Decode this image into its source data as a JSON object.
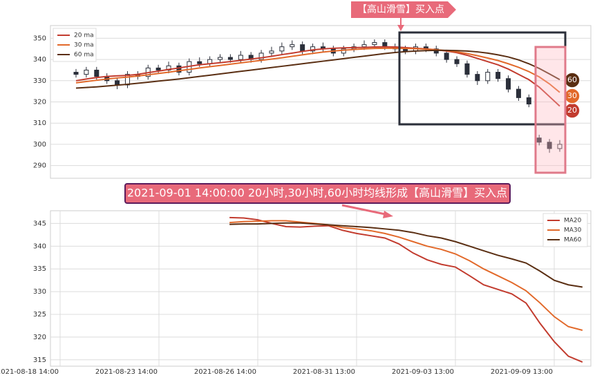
{
  "chart_data": [
    {
      "type": "candlestick",
      "callout": "【高山滑雪】买入点",
      "candle_color": "#2b2f3a",
      "open": [
        334,
        333,
        335,
        332,
        330,
        328,
        333,
        332,
        336,
        335,
        337,
        334,
        339,
        338,
        340,
        341,
        340,
        342,
        340,
        343,
        344,
        346,
        347,
        344,
        346,
        345,
        343,
        345,
        346,
        347,
        348,
        346,
        345,
        344,
        346,
        345,
        343,
        340,
        338,
        333,
        330,
        334,
        331,
        326,
        322,
        303,
        301,
        298
      ],
      "high": [
        335.5,
        336.5,
        336.5,
        333.5,
        331.5,
        334.5,
        334.5,
        337.5,
        337.5,
        339,
        338.5,
        340.5,
        341,
        341.5,
        342.5,
        342.5,
        344,
        343.5,
        344.5,
        346,
        348,
        349,
        348.5,
        347.5,
        348,
        346.5,
        346.5,
        347.5,
        349,
        349.5,
        349.5,
        347.5,
        346.5,
        347.5,
        347.5,
        346.5,
        344.5,
        341.5,
        339.5,
        334.5,
        335.5,
        335.5,
        332.5,
        327.5,
        323.5,
        304.5,
        302.5,
        302
      ],
      "low": [
        331.5,
        331.5,
        330.5,
        328.5,
        326,
        326.5,
        330.5,
        330.5,
        333.5,
        333.5,
        332.5,
        332.5,
        336.5,
        336.5,
        338.5,
        338.5,
        338.5,
        338.5,
        338.5,
        341.5,
        342.5,
        344.5,
        342.5,
        342.5,
        343.5,
        341.5,
        341.5,
        343.5,
        344.5,
        345.5,
        344.5,
        343.5,
        342.5,
        342.5,
        343.5,
        341.5,
        338.5,
        336.5,
        331.5,
        328,
        328.5,
        329.5,
        324.5,
        320.5,
        317.5,
        299.5,
        296,
        296.5
      ],
      "close": [
        333,
        335,
        332,
        330,
        328,
        333,
        332,
        336,
        335,
        337,
        334,
        339,
        338,
        340,
        341,
        340,
        342,
        340,
        343,
        344,
        346,
        347,
        344,
        346,
        345,
        343,
        345,
        346,
        347,
        348,
        346,
        345,
        344,
        346,
        345,
        343,
        340,
        338,
        333,
        330,
        334,
        331,
        326,
        322,
        319,
        301,
        298,
        300
      ],
      "series": [
        {
          "name": "20 ma",
          "color": "#c23b2e",
          "end_label": "20",
          "values": [
            330,
            330.8,
            331.5,
            332,
            332.3,
            332.5,
            333,
            333.8,
            334.5,
            335.3,
            336,
            336.8,
            337.5,
            338,
            338.5,
            339,
            339.6,
            340.2,
            340.8,
            341.5,
            342.3,
            343,
            343.8,
            344.5,
            345,
            345.3,
            345.5,
            345.6,
            345.7,
            345.9,
            346,
            345.9,
            345.6,
            345.3,
            345,
            344.6,
            344,
            343.2,
            342,
            340.5,
            339,
            337.5,
            335.5,
            333,
            330.5,
            327,
            322.5,
            318
          ]
        },
        {
          "name": "30 ma",
          "color": "#e2692a",
          "end_label": "30",
          "values": [
            329,
            329.6,
            330.2,
            330.8,
            331.3,
            331.7,
            332.2,
            332.8,
            333.4,
            334,
            334.7,
            335.3,
            336,
            336.6,
            337.2,
            337.8,
            338.4,
            339,
            339.6,
            340.2,
            340.8,
            341.5,
            342.2,
            342.9,
            343.5,
            344,
            344.4,
            344.7,
            345,
            345.2,
            345.3,
            345.3,
            345.2,
            345.1,
            344.9,
            344.6,
            344.2,
            343.6,
            342.8,
            341.8,
            340.7,
            339.5,
            338,
            336.3,
            334.3,
            331.8,
            328.5,
            324.5
          ]
        },
        {
          "name": "60 ma",
          "color": "#5a2e12",
          "end_label": "60",
          "values": [
            326.5,
            326.8,
            327.1,
            327.5,
            327.9,
            328.3,
            328.8,
            329.3,
            329.8,
            330.3,
            330.8,
            331.4,
            332,
            332.6,
            333.2,
            333.8,
            334.4,
            335,
            335.6,
            336.2,
            336.8,
            337.4,
            338,
            338.6,
            339.2,
            339.8,
            340.4,
            341,
            341.6,
            342.2,
            342.8,
            343.3,
            343.7,
            344,
            344.2,
            344.3,
            344.3,
            344.2,
            344,
            343.6,
            343,
            342.2,
            341.2,
            339.8,
            338,
            335.8,
            333.2,
            330.5
          ]
        }
      ],
      "ylim": [
        284,
        356
      ],
      "yticks": [
        290,
        300,
        310,
        320,
        330,
        340,
        350
      ],
      "grid": true,
      "legend": "upper left"
    },
    {
      "type": "line",
      "title": "2021-09-01 14:00:00 20小时,30小时,60小时均线形成【高山滑雪】买入点",
      "categories": [
        "2021-08-18 14:00",
        null,
        null,
        null,
        null,
        null,
        null,
        "2021-08-23 14:00",
        null,
        null,
        null,
        null,
        null,
        null,
        "2021-08-26 14:00",
        null,
        null,
        null,
        null,
        null,
        null,
        "2021-08-31 13:00",
        null,
        null,
        null,
        null,
        null,
        null,
        "2021-09-03 13:00",
        null,
        null,
        null,
        null,
        null,
        null,
        "2021-09-09 13:00",
        null,
        null
      ],
      "series": [
        {
          "name": "MA20",
          "color": "#c23b2e",
          "values": [
            null,
            null,
            null,
            null,
            null,
            null,
            null,
            null,
            null,
            null,
            null,
            null,
            346.3,
            346.2,
            345.8,
            345,
            344.3,
            344.2,
            344.4,
            344.5,
            343.5,
            342.8,
            342.3,
            341.8,
            340.5,
            338.5,
            337,
            336,
            335.4,
            333.5,
            331.5,
            330.5,
            329.5,
            327.5,
            323,
            319,
            315.8,
            314.5
          ]
        },
        {
          "name": "MA30",
          "color": "#e2692a",
          "values": [
            null,
            null,
            null,
            null,
            null,
            null,
            null,
            null,
            null,
            null,
            null,
            null,
            345.2,
            345.4,
            345.5,
            345.6,
            345.6,
            345.3,
            345,
            344.7,
            344.1,
            343.8,
            343.4,
            342.8,
            342,
            341,
            340,
            339.3,
            338.3,
            336.8,
            335,
            333.5,
            332,
            330.2,
            327.5,
            324.5,
            322.3,
            321.5
          ]
        },
        {
          "name": "MA60",
          "color": "#5a2e12",
          "values": [
            null,
            null,
            null,
            null,
            null,
            null,
            null,
            null,
            null,
            null,
            null,
            null,
            344.8,
            344.9,
            344.9,
            345,
            345.1,
            345.1,
            344.9,
            344.7,
            344.5,
            344.3,
            344.1,
            343.8,
            343.5,
            343,
            342.3,
            341.8,
            341,
            340,
            339,
            338,
            337.2,
            336.3,
            334.5,
            332.5,
            331.5,
            331
          ]
        }
      ],
      "ylim": [
        313.6,
        347.8
      ],
      "yticks": [
        315,
        320,
        325,
        330,
        335,
        340,
        345
      ],
      "grid": true,
      "legend": "upper right"
    }
  ]
}
